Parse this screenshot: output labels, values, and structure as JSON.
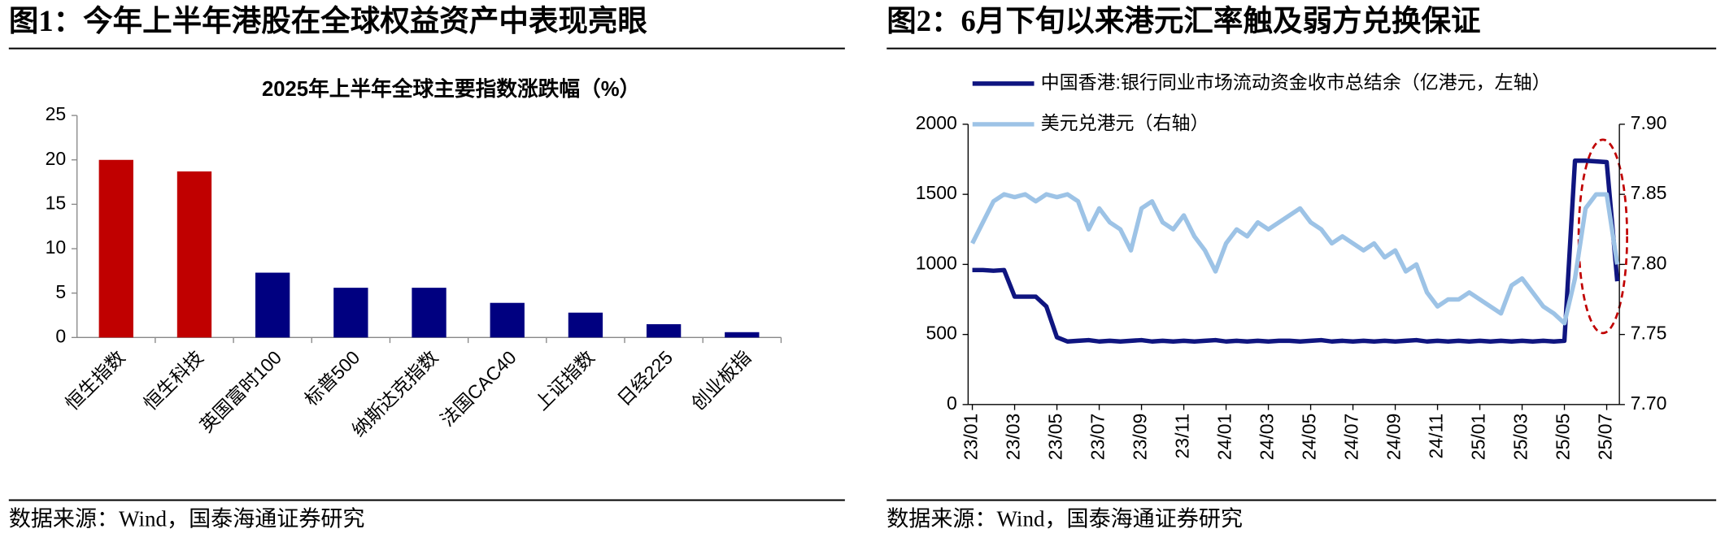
{
  "chart_data": [
    {
      "type": "bar",
      "title": "图1：今年上半年港股在全球权益资产中表现亮眼",
      "subtitle": "2025年上半年全球主要指数涨跌幅（%）",
      "source": "数据来源：Wind，国泰海通证券研究",
      "categories": [
        "恒生指数",
        "恒生科技",
        "英国富时100",
        "标普500",
        "纳斯达克指数",
        "法国CAC40",
        "上证指数",
        "日经225",
        "创业板指"
      ],
      "values": [
        20.0,
        18.7,
        7.3,
        5.6,
        5.6,
        3.9,
        2.8,
        1.5,
        0.6
      ],
      "colors": [
        "#c00000",
        "#c00000",
        "#000080",
        "#000080",
        "#000080",
        "#000080",
        "#000080",
        "#000080",
        "#000080"
      ],
      "ylim": [
        0,
        25
      ],
      "yticks": [
        0,
        5,
        10,
        15,
        20,
        25
      ]
    },
    {
      "type": "line",
      "title": "图2：6月下旬以来港元汇率触及弱方兑换保证",
      "source": "数据来源：Wind，国泰海通证券研究",
      "x": [
        0,
        0.5,
        1,
        1.5,
        2,
        2.5,
        3,
        3.5,
        4,
        4.5,
        5,
        5.5,
        6,
        6.5,
        7,
        7.5,
        8,
        8.5,
        9,
        9.5,
        10,
        10.5,
        11,
        11.5,
        12,
        12.5,
        13,
        13.5,
        14,
        14.5,
        15,
        15.5,
        16,
        16.5,
        17,
        17.5,
        18,
        18.5,
        19,
        19.5,
        20,
        20.5,
        21,
        21.5,
        22,
        22.5,
        23,
        23.5,
        24,
        24.5,
        25,
        25.5,
        26,
        26.5,
        27,
        27.5,
        28,
        28.5,
        29,
        29.5,
        30,
        30.5
      ],
      "xlim": [
        -0.2,
        30.6
      ],
      "xticks": [
        {
          "value": 0,
          "label": "23/01"
        },
        {
          "value": 2,
          "label": "23/03"
        },
        {
          "value": 4,
          "label": "23/05"
        },
        {
          "value": 6,
          "label": "23/07"
        },
        {
          "value": 8,
          "label": "23/09"
        },
        {
          "value": 10,
          "label": "23/11"
        },
        {
          "value": 12,
          "label": "24/01"
        },
        {
          "value": 14,
          "label": "24/03"
        },
        {
          "value": 16,
          "label": "24/05"
        },
        {
          "value": 18,
          "label": "24/07"
        },
        {
          "value": 20,
          "label": "24/09"
        },
        {
          "value": 22,
          "label": "24/11"
        },
        {
          "value": 24,
          "label": "25/01"
        },
        {
          "value": 26,
          "label": "25/03"
        },
        {
          "value": 28,
          "label": "25/05"
        },
        {
          "value": 30,
          "label": "25/07"
        }
      ],
      "ylim": [
        0,
        2000
      ],
      "yticks": [
        0,
        500,
        1000,
        1500,
        2000
      ],
      "y2lim": [
        7.7,
        7.9
      ],
      "y2ticks": [
        {
          "value": 7.7,
          "label": "7.70"
        },
        7.75,
        {
          "value": 7.8,
          "label": "7.80"
        },
        7.85,
        {
          "value": 7.9,
          "label": "7.90"
        }
      ],
      "series": [
        {
          "name": "中国香港:银行同业市场流动资金收市总结余（亿港元，左轴）",
          "color": "#0f1580",
          "values": [
            960,
            960,
            955,
            960,
            770,
            770,
            770,
            700,
            480,
            450,
            455,
            460,
            450,
            455,
            450,
            455,
            460,
            450,
            455,
            450,
            455,
            450,
            455,
            460,
            450,
            455,
            450,
            455,
            450,
            455,
            455,
            450,
            455,
            460,
            450,
            455,
            450,
            455,
            450,
            455,
            450,
            455,
            460,
            450,
            455,
            450,
            455,
            450,
            455,
            450,
            455,
            450,
            455,
            450,
            455,
            450,
            455,
            1740,
            1740,
            1735,
            1730,
            880
          ]
        },
        {
          "name": "美元兑港元（右轴）",
          "color": "#9dc3e6",
          "axis": "y2",
          "values": [
            7.815,
            7.83,
            7.845,
            7.85,
            7.848,
            7.85,
            7.845,
            7.85,
            7.848,
            7.85,
            7.845,
            7.825,
            7.84,
            7.83,
            7.825,
            7.81,
            7.84,
            7.845,
            7.83,
            7.825,
            7.835,
            7.82,
            7.81,
            7.795,
            7.815,
            7.825,
            7.82,
            7.83,
            7.825,
            7.83,
            7.835,
            7.84,
            7.83,
            7.825,
            7.815,
            7.82,
            7.815,
            7.81,
            7.815,
            7.805,
            7.81,
            7.795,
            7.8,
            7.78,
            7.77,
            7.775,
            7.775,
            7.78,
            7.775,
            7.77,
            7.765,
            7.785,
            7.79,
            7.78,
            7.77,
            7.765,
            7.758,
            7.79,
            7.84,
            7.85,
            7.85,
            7.8
          ]
        }
      ]
    }
  ]
}
